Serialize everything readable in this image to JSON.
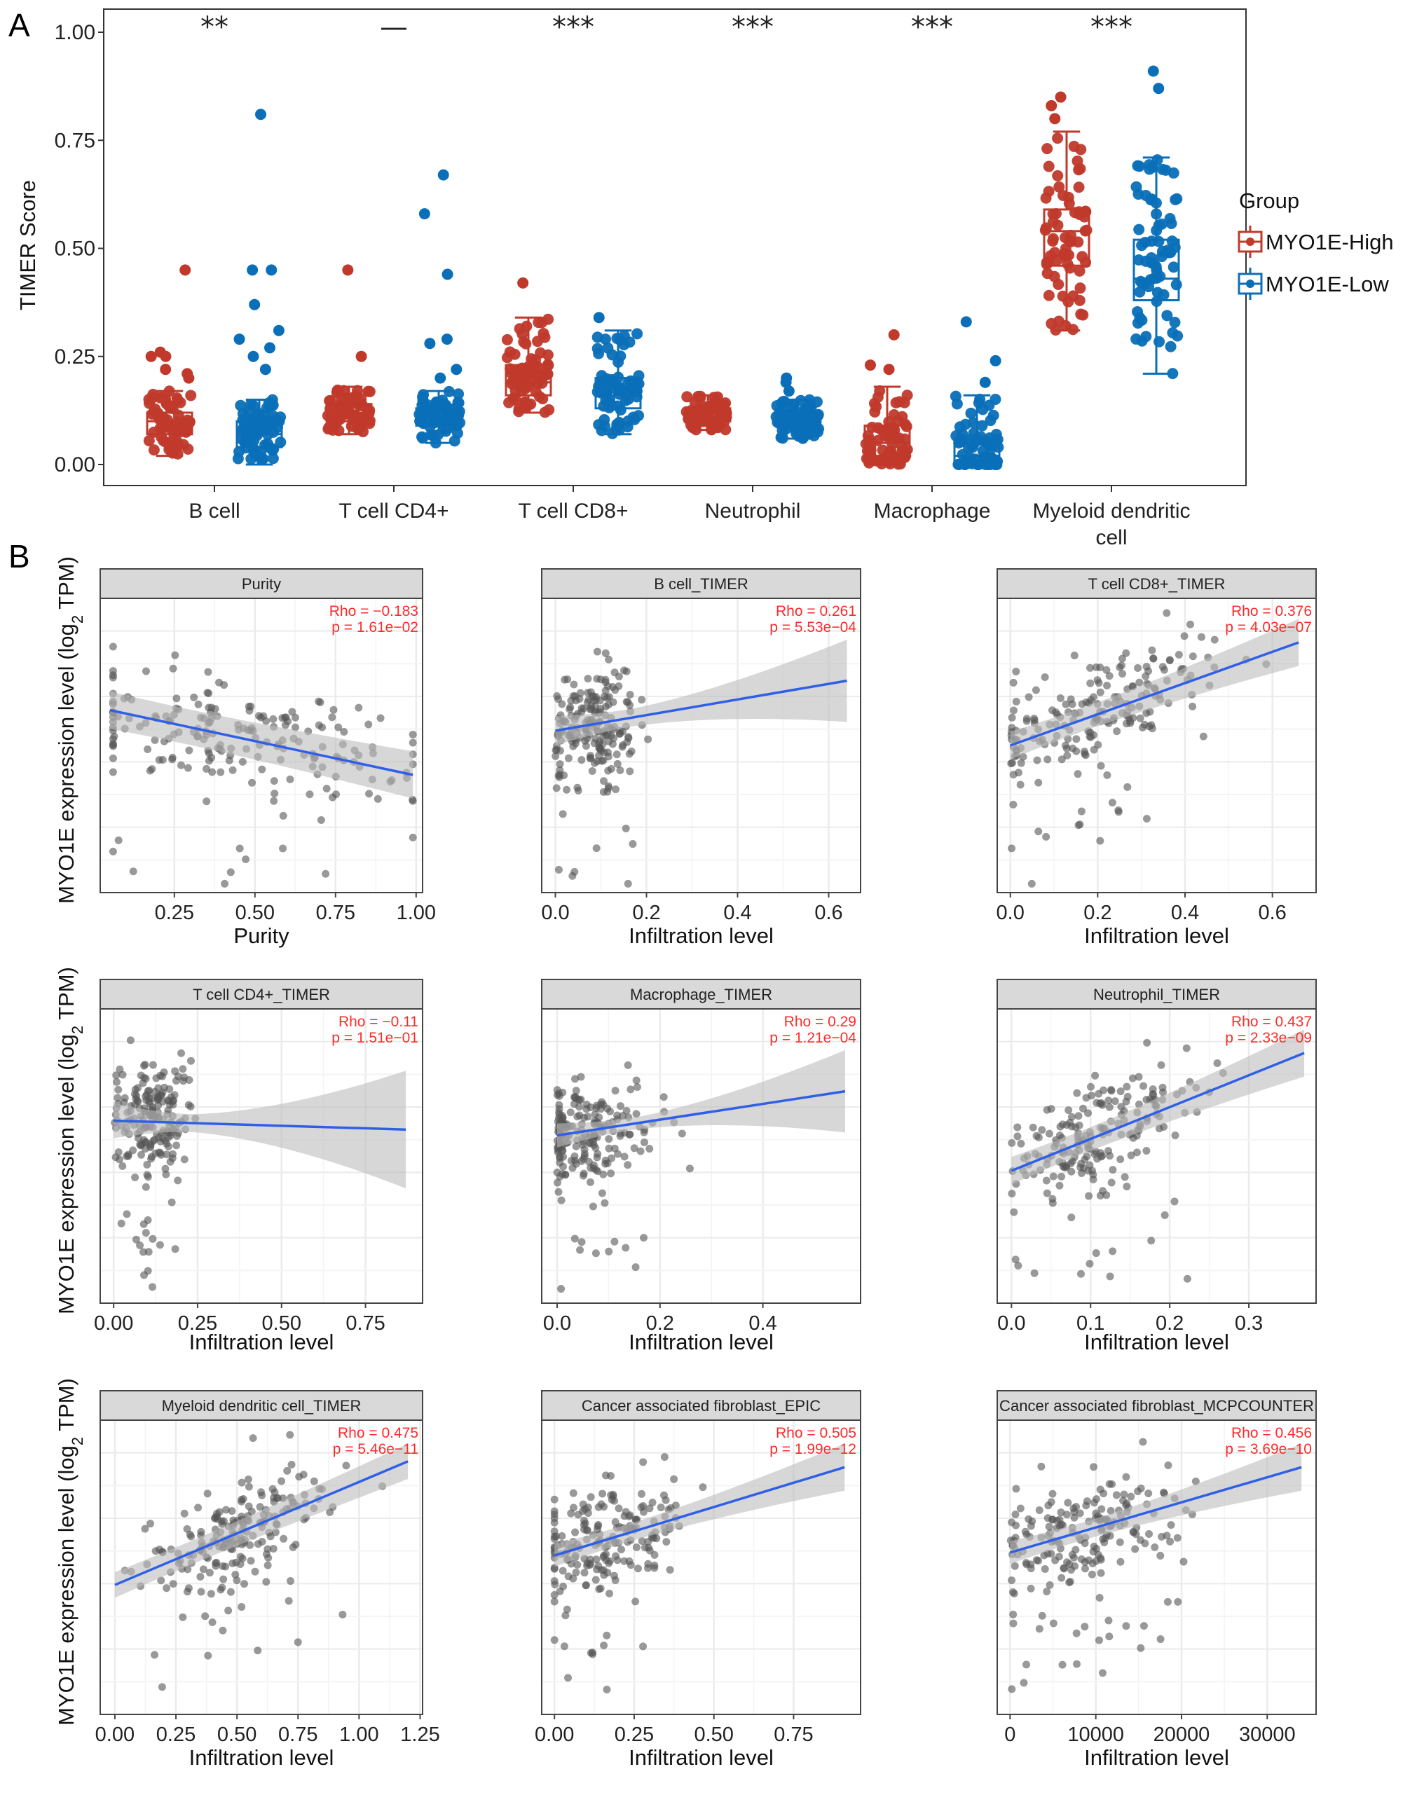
{
  "panel_labels": {
    "a": "A",
    "b": "B"
  },
  "colors": {
    "high": "#c0392b",
    "low": "#0a6fb8",
    "scatter": "#555555",
    "fit": "#2f5fe8",
    "ci": "#bdbdbd",
    "stat": "#ff2a2a",
    "strip": "#d9d9d9"
  },
  "chart_data": [
    {
      "id": "panel-a",
      "type": "box",
      "title": "",
      "xlabel": "",
      "ylabel": "TIMER Score",
      "ylim": [
        -0.05,
        1.05
      ],
      "yticks": [
        "0.00",
        "0.25",
        "0.50",
        "0.75",
        "1.00"
      ],
      "ytick_values": [
        0,
        0.25,
        0.5,
        0.75,
        1.0
      ],
      "categories": [
        "B cell",
        "T cell CD4+",
        "T cell CD8+",
        "Neutrophil",
        "Macrophage",
        "Myeloid dendritic cell"
      ],
      "category_lines": [
        [
          "B cell"
        ],
        [
          "T cell CD4+"
        ],
        [
          "T cell CD8+"
        ],
        [
          "Neutrophil"
        ],
        [
          "Macrophage"
        ],
        [
          "Myeloid dendritic",
          "cell"
        ]
      ],
      "significance": [
        "**",
        "—",
        "***",
        "***",
        "***",
        "***"
      ],
      "legend": {
        "title": "Group",
        "position": "right",
        "entries": [
          "MYO1E-High",
          "MYO1E-Low"
        ]
      },
      "series": [
        {
          "name": "MYO1E-High",
          "boxes": [
            {
              "whisker_low": 0.02,
              "q1": 0.07,
              "median": 0.1,
              "q3": 0.12,
              "whisker_high": 0.17,
              "outliers": [
                0.45,
                0.26,
                0.25,
                0.25,
                0.22,
                0.21,
                0.2
              ]
            },
            {
              "whisker_low": 0.07,
              "q1": 0.1,
              "median": 0.12,
              "q3": 0.14,
              "whisker_high": 0.18,
              "outliers": [
                0.45,
                0.25
              ]
            },
            {
              "whisker_low": 0.12,
              "q1": 0.16,
              "median": 0.19,
              "q3": 0.23,
              "whisker_high": 0.34,
              "outliers": [
                0.42
              ]
            },
            {
              "whisker_low": 0.08,
              "q1": 0.1,
              "median": 0.12,
              "q3": 0.13,
              "whisker_high": 0.16,
              "outliers": []
            },
            {
              "whisker_low": 0.0,
              "q1": 0.02,
              "median": 0.05,
              "q3": 0.09,
              "whisker_high": 0.18,
              "outliers": [
                0.3,
                0.23,
                0.22
              ]
            },
            {
              "whisker_low": 0.31,
              "q1": 0.46,
              "median": 0.54,
              "q3": 0.59,
              "whisker_high": 0.77,
              "outliers": [
                0.85,
                0.83,
                0.8
              ]
            }
          ]
        },
        {
          "name": "MYO1E-Low",
          "boxes": [
            {
              "whisker_low": 0.0,
              "q1": 0.04,
              "median": 0.07,
              "q3": 0.1,
              "whisker_high": 0.15,
              "outliers": [
                0.81,
                0.45,
                0.45,
                0.37,
                0.31,
                0.29,
                0.27,
                0.25,
                0.22
              ]
            },
            {
              "whisker_low": 0.05,
              "q1": 0.09,
              "median": 0.11,
              "q3": 0.13,
              "whisker_high": 0.17,
              "outliers": [
                0.67,
                0.58,
                0.44,
                0.29,
                0.28,
                0.22,
                0.2
              ]
            },
            {
              "whisker_low": 0.07,
              "q1": 0.13,
              "median": 0.16,
              "q3": 0.2,
              "whisker_high": 0.31,
              "outliers": [
                0.34
              ]
            },
            {
              "whisker_low": 0.06,
              "q1": 0.09,
              "median": 0.1,
              "q3": 0.12,
              "whisker_high": 0.15,
              "outliers": [
                0.2,
                0.19,
                0.17
              ]
            },
            {
              "whisker_low": 0.0,
              "q1": 0.0,
              "median": 0.02,
              "q3": 0.06,
              "whisker_high": 0.16,
              "outliers": [
                0.33,
                0.24,
                0.19
              ]
            },
            {
              "whisker_low": 0.21,
              "q1": 0.38,
              "median": 0.43,
              "q3": 0.52,
              "whisker_high": 0.71,
              "outliers": [
                0.91,
                0.87
              ]
            }
          ]
        }
      ]
    },
    {
      "id": "panel-b",
      "type": "scatter",
      "ylabel": "MYO1E expression level (log2 TPM)",
      "ylabel_parts": {
        "pre": "MYO1E expression level (log",
        "sub": "2",
        "post": " TPM)"
      },
      "facets": [
        {
          "strip": "Purity",
          "xlabel": "Purity",
          "rho": "Rho = −0.183",
          "p": "p = 1.61e−02",
          "xlim": [
            0.02,
            1.02
          ],
          "xticks": [
            "0.25",
            "0.50",
            "0.75",
            "1.00"
          ],
          "xtick_values": [
            0.25,
            0.5,
            0.75,
            1.0
          ],
          "fit": [
            [
              0.05,
              0.62
            ],
            [
              0.99,
              0.4
            ]
          ],
          "ci_width": [
            0.06,
            0.08
          ],
          "cloud": {
            "cx": 0.45,
            "cy": 0.58,
            "sx": 0.3,
            "sy": 0.14,
            "n": 200
          }
        },
        {
          "strip": "B cell_TIMER",
          "xlabel": "Infiltration level",
          "rho": "Rho = 0.261",
          "p": "p = 5.53e−04",
          "xlim": [
            -0.03,
            0.67
          ],
          "xticks": [
            "0.0",
            "0.2",
            "0.4",
            "0.6"
          ],
          "xtick_values": [
            0.0,
            0.2,
            0.4,
            0.6
          ],
          "fit": [
            [
              0.0,
              0.55
            ],
            [
              0.64,
              0.72
            ]
          ],
          "ci_width": [
            0.03,
            0.14
          ],
          "cloud": {
            "cx": 0.08,
            "cy": 0.6,
            "sx": 0.05,
            "sy": 0.14,
            "n": 200
          }
        },
        {
          "strip": "T cell CD8+_TIMER",
          "xlabel": "Infiltration level",
          "rho": "Rho = 0.376",
          "p": "p = 4.03e−07",
          "xlim": [
            -0.03,
            0.7
          ],
          "xticks": [
            "0.0",
            "0.2",
            "0.4",
            "0.6"
          ],
          "xtick_values": [
            0.0,
            0.2,
            0.4,
            0.6
          ],
          "fit": [
            [
              0.0,
              0.5
            ],
            [
              0.66,
              0.85
            ]
          ],
          "ci_width": [
            0.04,
            0.08
          ],
          "cloud": {
            "cx": 0.2,
            "cy": 0.62,
            "sx": 0.13,
            "sy": 0.12,
            "n": 200
          }
        },
        {
          "strip": "T cell CD4+_TIMER",
          "xlabel": "Infiltration level",
          "rho": "Rho = −0.11",
          "p": "p = 1.51e−01",
          "xlim": [
            -0.04,
            0.92
          ],
          "xticks": [
            "0.00",
            "0.25",
            "0.50",
            "0.75"
          ],
          "xtick_values": [
            0.0,
            0.25,
            0.5,
            0.75
          ],
          "fit": [
            [
              0.0,
              0.62
            ],
            [
              0.87,
              0.59
            ]
          ],
          "ci_width": [
            0.03,
            0.2
          ],
          "cloud": {
            "cx": 0.11,
            "cy": 0.6,
            "sx": 0.06,
            "sy": 0.15,
            "n": 200
          }
        },
        {
          "strip": "Macrophage_TIMER",
          "xlabel": "Infiltration level",
          "rho": "Rho = 0.29",
          "p": "p = 1.21e−04",
          "xlim": [
            -0.03,
            0.59
          ],
          "xticks": [
            "0.0",
            "0.2",
            "0.4"
          ],
          "xtick_values": [
            0.0,
            0.2,
            0.4
          ],
          "fit": [
            [
              0.0,
              0.57
            ],
            [
              0.56,
              0.72
            ]
          ],
          "ci_width": [
            0.02,
            0.14
          ],
          "cloud": {
            "cx": 0.06,
            "cy": 0.62,
            "sx": 0.07,
            "sy": 0.12,
            "n": 200
          }
        },
        {
          "strip": "Neutrophil_TIMER",
          "xlabel": "Infiltration level",
          "rho": "Rho = 0.437",
          "p": "p = 2.33e−09",
          "xlim": [
            -0.018,
            0.385
          ],
          "xticks": [
            "0.0",
            "0.1",
            "0.2",
            "0.3"
          ],
          "xtick_values": [
            0.0,
            0.1,
            0.2,
            0.3
          ],
          "fit": [
            [
              0.0,
              0.45
            ],
            [
              0.37,
              0.85
            ]
          ],
          "ci_width": [
            0.04,
            0.08
          ],
          "cloud": {
            "cx": 0.11,
            "cy": 0.58,
            "sx": 0.06,
            "sy": 0.12,
            "n": 200
          }
        },
        {
          "strip": "Myeloid dendritic cell_TIMER",
          "xlabel": "Infiltration level",
          "rho": "Rho = 0.475",
          "p": "p = 5.46e−11",
          "xlim": [
            -0.06,
            1.26
          ],
          "xticks": [
            "0.00",
            "0.25",
            "0.50",
            "0.75",
            "1.00",
            "1.25"
          ],
          "xtick_values": [
            0.0,
            0.25,
            0.5,
            0.75,
            1.0,
            1.25
          ],
          "fit": [
            [
              0.0,
              0.44
            ],
            [
              1.2,
              0.86
            ]
          ],
          "ci_width": [
            0.04,
            0.06
          ],
          "cloud": {
            "cx": 0.5,
            "cy": 0.62,
            "sx": 0.18,
            "sy": 0.12,
            "n": 200
          }
        },
        {
          "strip": "Cancer associated fibroblast_EPIC",
          "xlabel": "Infiltration level",
          "rho": "Rho = 0.505",
          "p": "p = 1.99e−12",
          "xlim": [
            -0.04,
            0.96
          ],
          "xticks": [
            "0.00",
            "0.25",
            "0.50",
            "0.75"
          ],
          "xtick_values": [
            0.0,
            0.25,
            0.5,
            0.75
          ],
          "fit": [
            [
              0.0,
              0.54
            ],
            [
              0.91,
              0.84
            ]
          ],
          "ci_width": [
            0.03,
            0.08
          ],
          "cloud": {
            "cx": 0.17,
            "cy": 0.62,
            "sx": 0.12,
            "sy": 0.13,
            "n": 200
          }
        },
        {
          "strip": "Cancer associated fibroblast_MCPCOUNTER",
          "xlabel": "Infiltration level",
          "rho": "Rho = 0.456",
          "p": "p = 3.69e−10",
          "xlim": [
            -1500,
            35700
          ],
          "xticks": [
            "0",
            "10000",
            "20000",
            "30000"
          ],
          "xtick_values": [
            0,
            10000,
            20000,
            30000
          ],
          "fit": [
            [
              0,
              0.55
            ],
            [
              34000,
              0.84
            ]
          ],
          "ci_width": [
            0.03,
            0.08
          ],
          "cloud": {
            "cx": 8000,
            "cy": 0.62,
            "sx": 6000,
            "sy": 0.13,
            "n": 200
          }
        }
      ]
    }
  ]
}
